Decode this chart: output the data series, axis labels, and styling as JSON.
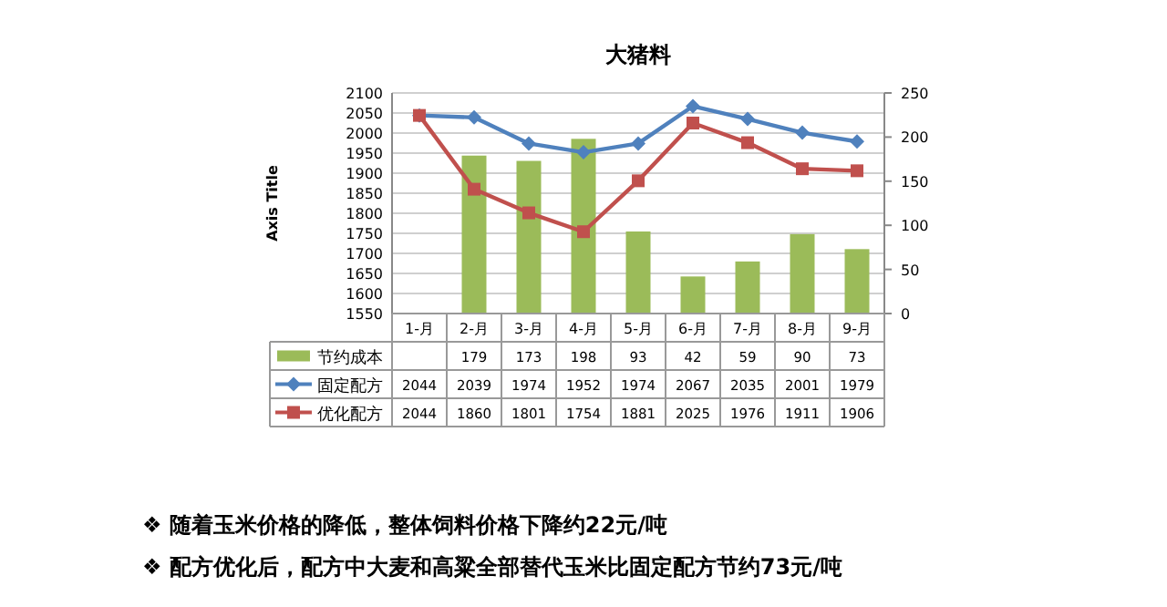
{
  "chart_data": {
    "type": "bar",
    "title": "大猪料",
    "ylabel": "Axis Title",
    "categories": [
      "1-月",
      "2-月",
      "3-月",
      "4-月",
      "5-月",
      "6-月",
      "7-月",
      "8-月",
      "9-月"
    ],
    "series": [
      {
        "name": "节约成本",
        "axis": "y2",
        "color": "#9bbb59",
        "values": [
          null,
          179,
          173,
          198,
          93,
          42,
          59,
          90,
          73
        ]
      },
      {
        "name": "固定配方",
        "type": "line",
        "color": "#4f81bd",
        "marker": "diamond",
        "values": [
          2044,
          2039,
          1974,
          1952,
          1974,
          2067,
          2035,
          2001,
          1979
        ]
      },
      {
        "name": "优化配方",
        "type": "line",
        "color": "#c0504d",
        "marker": "square",
        "values": [
          2044,
          1860,
          1801,
          1754,
          1881,
          2025,
          1976,
          1911,
          1906
        ]
      }
    ],
    "ylim": [
      1550,
      2100
    ],
    "yticks": [
      1550,
      1600,
      1650,
      1700,
      1750,
      1800,
      1850,
      1900,
      1950,
      2000,
      2050,
      2100
    ],
    "y2lim": [
      0,
      250
    ],
    "y2ticks": [
      0,
      50,
      100,
      150,
      200,
      250
    ],
    "grid": "y",
    "legend": "bottom left",
    "data_labels": true,
    "annotations": [
      "❖ 随着玉米价格的降低，整体饲料价格下降约22元/吨",
      "❖ 配方优化后，配方中大麦和高粱全部替代玉米比固定配方节约73元/吨"
    ]
  }
}
